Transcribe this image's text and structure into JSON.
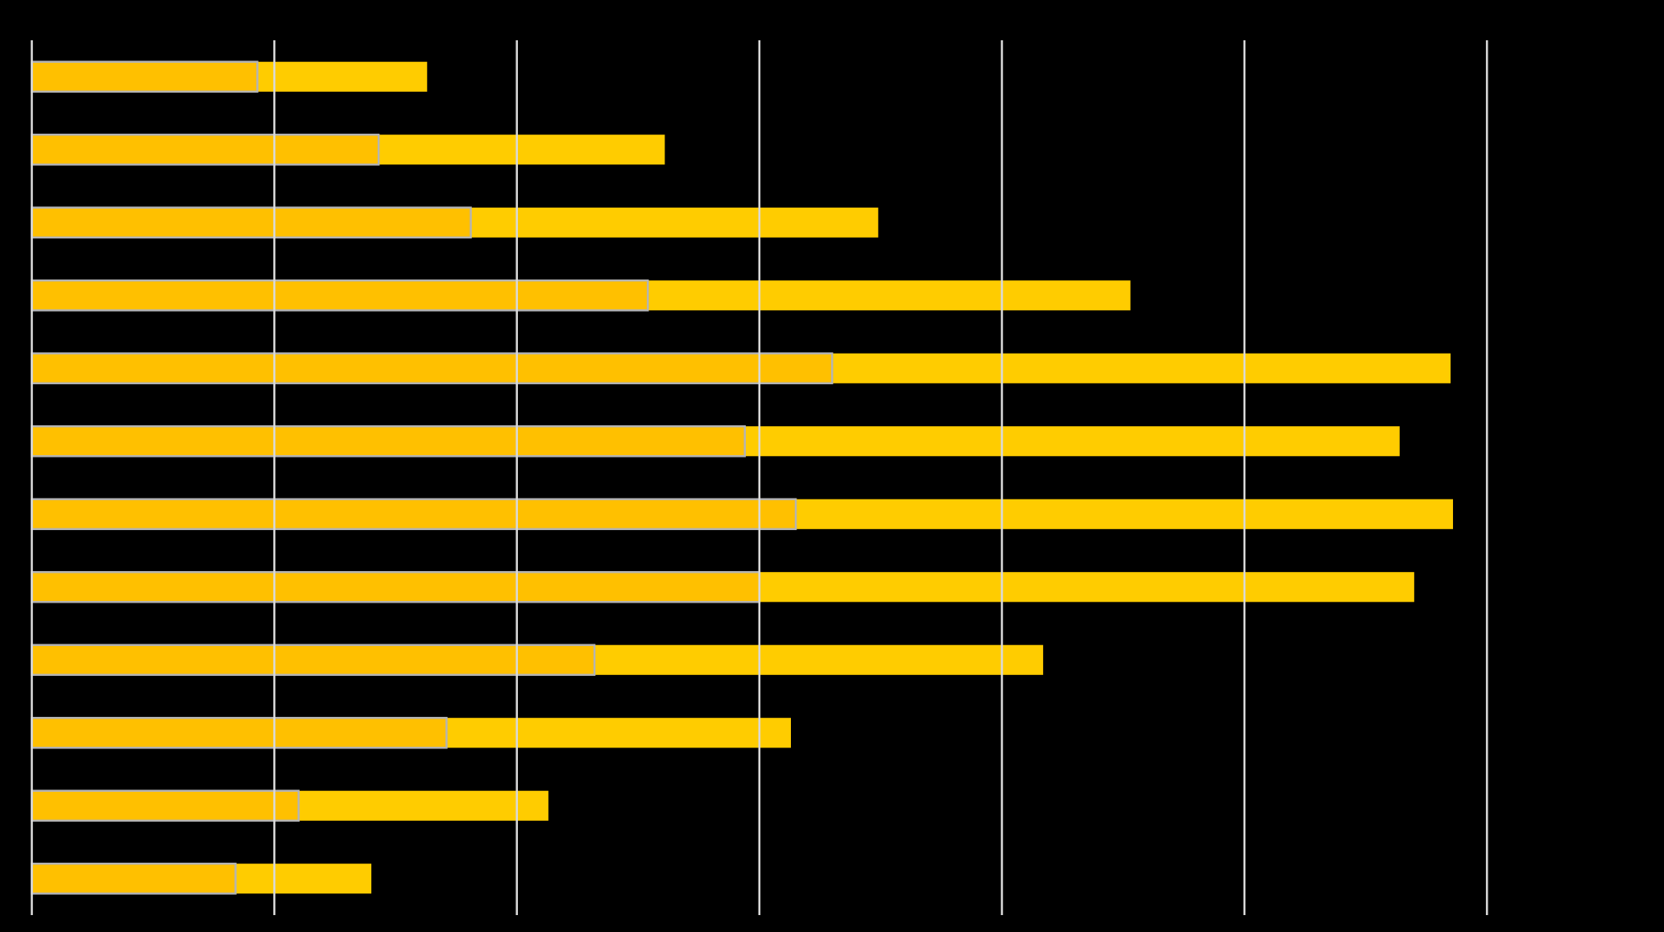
{
  "chart_data": {
    "type": "bar",
    "orientation": "horizontal",
    "overlap": true,
    "categories": [
      null,
      null,
      null,
      null,
      null,
      null,
      null,
      null,
      null,
      null,
      null,
      null
    ],
    "series": [
      {
        "color": "#ffcc00",
        "values": [
          1.63,
          2.61,
          3.49,
          4.53,
          5.85,
          5.64,
          5.86,
          5.7,
          4.17,
          3.13,
          2.13,
          1.4
        ]
      },
      {
        "color": "#ffc000",
        "outline": "#b4b4b4",
        "values": [
          0.93,
          1.43,
          1.81,
          2.54,
          3.3,
          2.94,
          3.15,
          3.0,
          2.32,
          1.71,
          1.1,
          0.84
        ]
      }
    ],
    "xlim": [
      0,
      6.73
    ],
    "xticks": [
      0,
      1,
      2,
      3,
      4,
      5,
      6
    ],
    "grid": true
  }
}
